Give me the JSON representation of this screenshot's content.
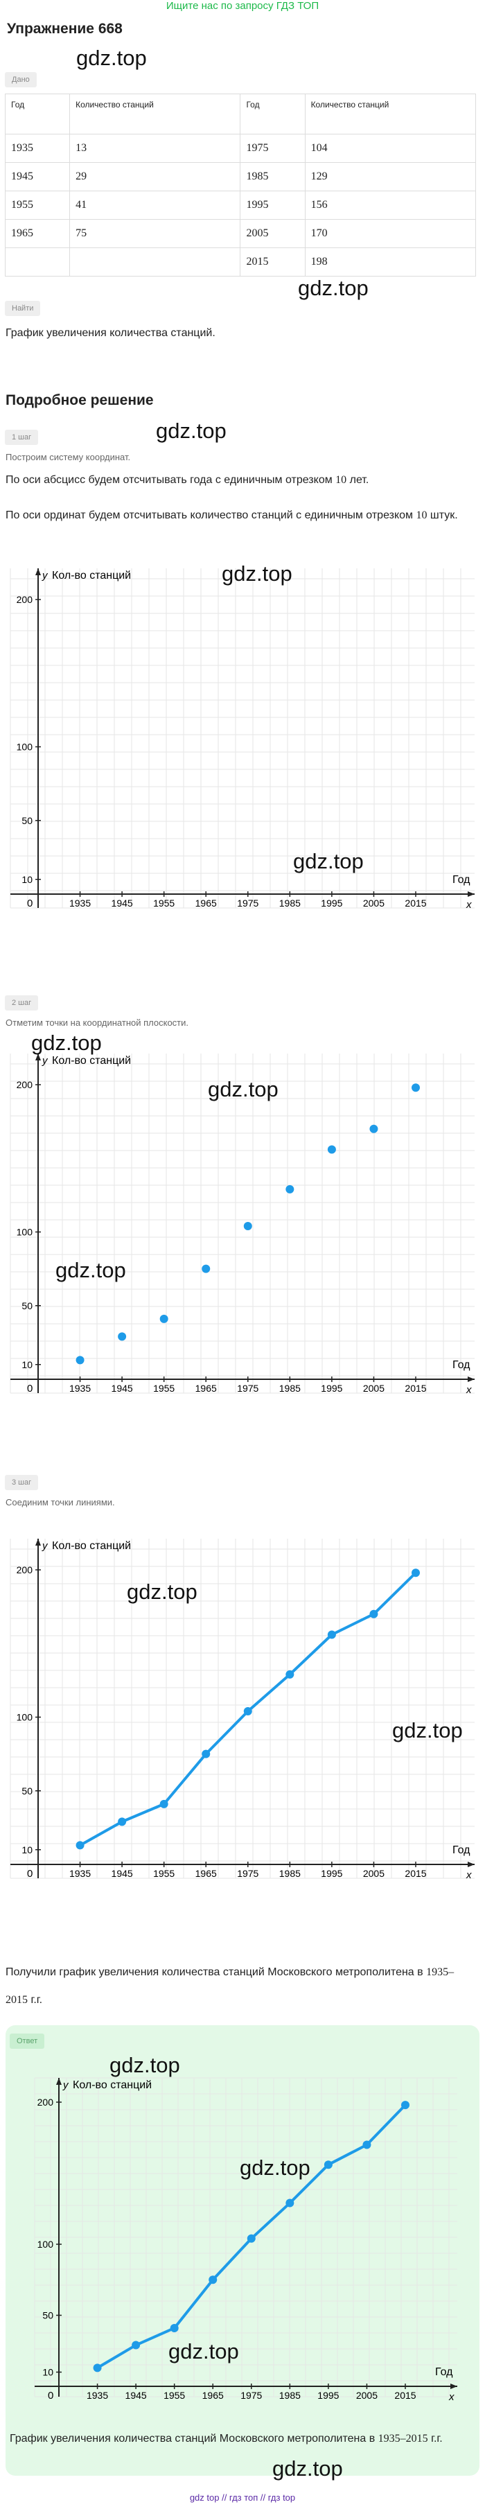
{
  "banner": "Ищите нас по запросу ГДЗ ТОП",
  "title": "Упражнение 668",
  "watermark": "gdz.top",
  "given_label": "Дано",
  "table": {
    "headers": [
      "Год",
      "Количество станций",
      "Год",
      "Количество станций"
    ],
    "rows": [
      [
        "1935",
        "13",
        "1975",
        "104"
      ],
      [
        "1945",
        "29",
        "1985",
        "129"
      ],
      [
        "1955",
        "41",
        "1995",
        "156"
      ],
      [
        "1965",
        "75",
        "2005",
        "170"
      ],
      [
        "",
        "",
        "2015",
        "198"
      ]
    ]
  },
  "find_label": "Найти",
  "find_text": "График увеличения количества станций.",
  "solution_title": "Подробное решение",
  "step1_label": "1 шаг",
  "step1_text": "Построим систему координат.",
  "step1_p1_before": "По оси абсцисс будем отсчитывать года с единичным отрезком ",
  "step1_p1_num": "10",
  "step1_p1_after": " лет.",
  "step1_p2_before": "По оси ординат будем отсчитывать количество станций с единичным отрезком ",
  "step1_p2_num": "10",
  "step1_p2_after": " штук.",
  "step2_label": "2 шаг",
  "step2_text": "Отметим точки на координатной плоскости.",
  "step3_label": "3 шаг",
  "step3_text": "Соединим точки линиями.",
  "conclusion_before": "Получили график увеличения количества станций Московского метрополитена в ",
  "conclusion_range": "1935–2015",
  "conclusion_after": " г.г.",
  "answer_label": "Ответ",
  "answer_text_before": "График увеличения количества станций Московского метрополитена в ",
  "answer_range": "1935–2015",
  "answer_after": " г.г.",
  "footer": "gdz top  //  гдз топ  //  гдз top",
  "chart_data": {
    "type": "line",
    "x": [
      1935,
      1945,
      1955,
      1965,
      1975,
      1985,
      1995,
      2005,
      2015
    ],
    "x_ticks": [
      "1935",
      "1945",
      "1955",
      "1965",
      "1975",
      "1985",
      "1995",
      "2005",
      "2015"
    ],
    "y_ticks": [
      "10",
      "50",
      "100",
      "200"
    ],
    "series": [
      {
        "x": [
          1935,
          1945,
          1955,
          1965,
          1975,
          1985,
          1995,
          2005,
          2015
        ],
        "values": [
          13,
          29,
          41,
          75,
          104,
          129,
          156,
          170,
          198
        ]
      }
    ],
    "xlabel": "Год",
    "ylabel": "Кол-во станций",
    "x_axis_letter": "x",
    "y_axis_letter": "y",
    "origin_label": "0",
    "xlim": [
      1925,
      2025
    ],
    "ylim": [
      0,
      220
    ],
    "grid": true,
    "color": "#1e9be8"
  }
}
